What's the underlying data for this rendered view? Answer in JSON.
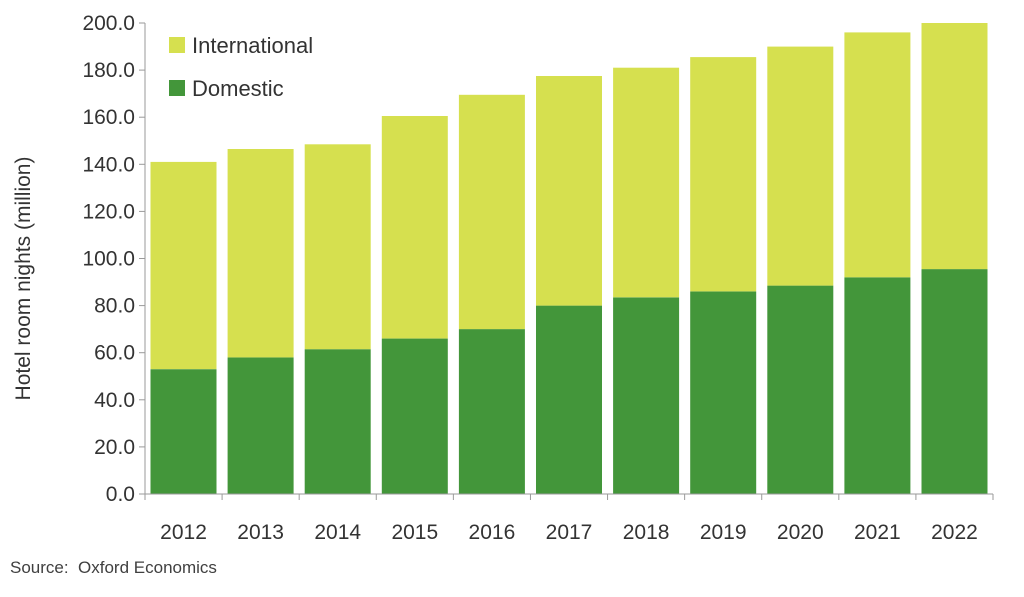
{
  "chart_data": {
    "type": "bar",
    "stacked": true,
    "categories": [
      "2012",
      "2013",
      "2014",
      "2015",
      "2016",
      "2017",
      "2018",
      "2019",
      "2020",
      "2021",
      "2022"
    ],
    "series": [
      {
        "name": "Domestic",
        "color": "#43963a",
        "values": [
          53,
          58,
          61.5,
          66,
          70,
          80,
          83.5,
          86,
          88.5,
          92,
          95.5
        ]
      },
      {
        "name": "International",
        "color": "#d6e04f",
        "values": [
          88,
          88.5,
          87,
          94.5,
          99.5,
          97.5,
          97.5,
          99.5,
          101.5,
          104,
          104.5
        ]
      }
    ],
    "title": "",
    "xlabel": "",
    "ylabel": "Hotel room nights (million)",
    "ylim": [
      0,
      200
    ],
    "yticks": [
      "0.0",
      "20.0",
      "40.0",
      "60.0",
      "80.0",
      "100.0",
      "120.0",
      "140.0",
      "160.0",
      "180.0",
      "200.0"
    ],
    "legend_order": [
      "International",
      "Domestic"
    ],
    "legend_position": "top-left",
    "grid": false
  },
  "footer": {
    "source": "Source:  Oxford Economics"
  }
}
